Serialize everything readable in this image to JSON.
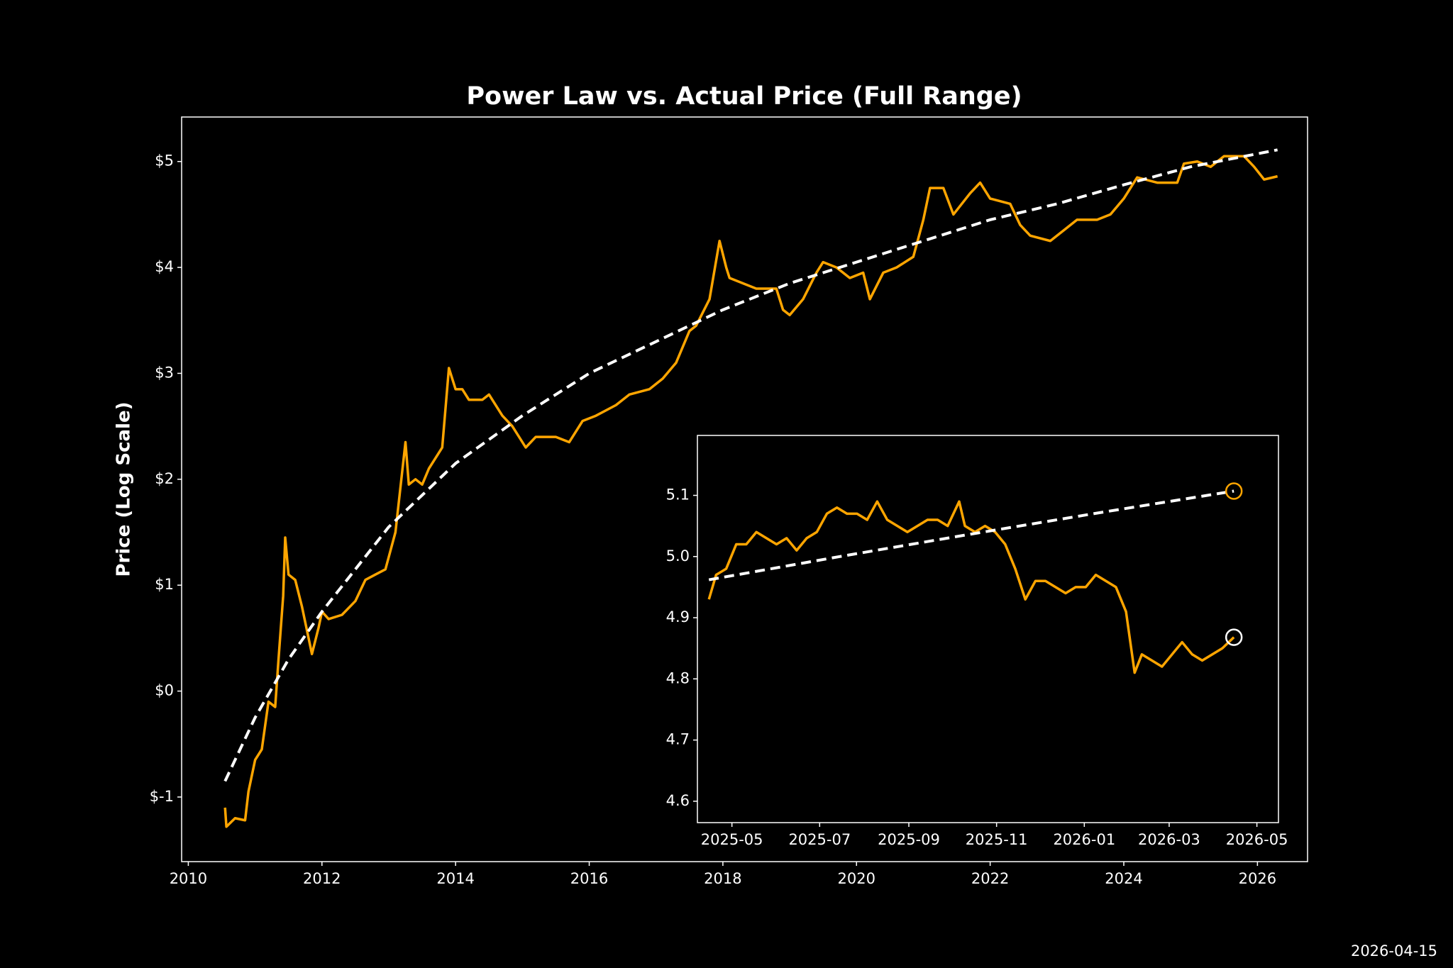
{
  "chart_data": [
    {
      "type": "line",
      "title": "Power Law vs. Actual Price (Full Range)",
      "ylabel": "Price (Log Scale)",
      "xlim": [
        2009.9,
        2026.75
      ],
      "xticks": [
        2010,
        2012,
        2014,
        2016,
        2018,
        2020,
        2022,
        2024,
        2026
      ],
      "ylim": [
        -1.61,
        5.42
      ],
      "yticks": [
        {
          "value": -1,
          "label": "$-1"
        },
        {
          "value": 0,
          "label": "$0"
        },
        {
          "value": 1,
          "label": "$1"
        },
        {
          "value": 2,
          "label": "$2"
        },
        {
          "value": 3,
          "label": "$3"
        },
        {
          "value": 4,
          "label": "$4"
        },
        {
          "value": 5,
          "label": "$5"
        }
      ],
      "series": [
        {
          "color": "#ffa500",
          "linestyle": "solid",
          "x": [
            2010.55,
            2010.57,
            2010.7,
            2010.85,
            2010.9,
            2011.0,
            2011.1,
            2011.2,
            2011.3,
            2011.35,
            2011.42,
            2011.45,
            2011.5,
            2011.6,
            2011.7,
            2011.8,
            2011.85,
            2011.95,
            2012.0,
            2012.1,
            2012.3,
            2012.5,
            2012.65,
            2012.8,
            2012.95,
            2013.1,
            2013.25,
            2013.3,
            2013.4,
            2013.5,
            2013.6,
            2013.8,
            2013.9,
            2014.0,
            2014.1,
            2014.2,
            2014.4,
            2014.5,
            2014.7,
            2014.85,
            2015.05,
            2015.2,
            2015.5,
            2015.7,
            2015.9,
            2016.1,
            2016.4,
            2016.6,
            2016.9,
            2017.1,
            2017.3,
            2017.5,
            2017.6,
            2017.8,
            2017.95,
            2018.05,
            2018.1,
            2018.3,
            2018.5,
            2018.8,
            2018.9,
            2019.0,
            2019.2,
            2019.4,
            2019.5,
            2019.7,
            2019.9,
            2020.1,
            2020.2,
            2020.4,
            2020.6,
            2020.85,
            2021.0,
            2021.1,
            2021.3,
            2021.45,
            2021.7,
            2021.85,
            2022.0,
            2022.3,
            2022.45,
            2022.6,
            2022.9,
            2023.1,
            2023.3,
            2023.6,
            2023.8,
            2024.0,
            2024.2,
            2024.5,
            2024.8,
            2024.9,
            2025.1,
            2025.3,
            2025.5,
            2025.8,
            2025.95,
            2026.1,
            2026.3
          ],
          "values": [
            -1.1,
            -1.28,
            -1.2,
            -1.22,
            -0.95,
            -0.65,
            -0.55,
            -0.1,
            -0.15,
            0.3,
            0.9,
            1.45,
            1.1,
            1.05,
            0.8,
            0.5,
            0.35,
            0.6,
            0.75,
            0.68,
            0.72,
            0.85,
            1.05,
            1.1,
            1.15,
            1.5,
            2.35,
            1.95,
            2.0,
            1.95,
            2.1,
            2.3,
            3.05,
            2.85,
            2.85,
            2.75,
            2.75,
            2.8,
            2.6,
            2.5,
            2.3,
            2.4,
            2.4,
            2.35,
            2.55,
            2.6,
            2.7,
            2.8,
            2.85,
            2.95,
            3.1,
            3.4,
            3.45,
            3.7,
            4.25,
            4.0,
            3.9,
            3.85,
            3.8,
            3.8,
            3.6,
            3.55,
            3.7,
            3.95,
            4.05,
            4.0,
            3.9,
            3.95,
            3.7,
            3.95,
            4.0,
            4.1,
            4.45,
            4.75,
            4.75,
            4.5,
            4.7,
            4.8,
            4.65,
            4.6,
            4.4,
            4.3,
            4.25,
            4.35,
            4.45,
            4.45,
            4.5,
            4.65,
            4.85,
            4.8,
            4.8,
            4.98,
            5.0,
            4.95,
            5.05,
            5.05,
            4.95,
            4.83,
            4.86
          ]
        },
        {
          "color": "#ffffff",
          "linestyle": "dashed",
          "x": [
            2010.55,
            2011,
            2011.5,
            2012,
            2013,
            2014,
            2015,
            2016,
            2017,
            2018,
            2019,
            2020,
            2021,
            2022,
            2023,
            2024,
            2025,
            2026.3
          ],
          "values": [
            -0.85,
            -0.25,
            0.3,
            0.75,
            1.55,
            2.15,
            2.6,
            3.0,
            3.3,
            3.6,
            3.85,
            4.05,
            4.25,
            4.45,
            4.6,
            4.78,
            4.95,
            5.11
          ]
        }
      ]
    },
    {
      "type": "line",
      "xscale": "date",
      "xlim": [
        "2025-04-07",
        "2026-05-16"
      ],
      "xticks": [
        "2025-05",
        "2025-07",
        "2025-09",
        "2025-11",
        "2026-01",
        "2026-03",
        "2026-05"
      ],
      "ylim": [
        4.565,
        5.198
      ],
      "yticks": [
        4.6,
        4.7,
        4.8,
        4.9,
        {
          "value": 5,
          "label": "5.0"
        },
        5.1
      ],
      "series": [
        {
          "color": "#ffa500",
          "linestyle": "solid",
          "end_marker_color": "#ffffff",
          "x": [
            "2025-04-15",
            "2025-04-20",
            "2025-04-27",
            "2025-05-04",
            "2025-05-11",
            "2025-05-18",
            "2025-05-25",
            "2025-06-01",
            "2025-06-08",
            "2025-06-15",
            "2025-06-22",
            "2025-06-29",
            "2025-07-06",
            "2025-07-13",
            "2025-07-20",
            "2025-07-27",
            "2025-08-03",
            "2025-08-10",
            "2025-08-17",
            "2025-08-24",
            "2025-08-31",
            "2025-09-07",
            "2025-09-14",
            "2025-09-21",
            "2025-09-28",
            "2025-10-06",
            "2025-10-10",
            "2025-10-17",
            "2025-10-24",
            "2025-10-31",
            "2025-11-07",
            "2025-11-14",
            "2025-11-21",
            "2025-11-28",
            "2025-12-05",
            "2025-12-12",
            "2025-12-19",
            "2025-12-26",
            "2026-01-02",
            "2026-01-09",
            "2026-01-16",
            "2026-01-23",
            "2026-01-30",
            "2026-02-05",
            "2026-02-10",
            "2026-02-17",
            "2026-02-24",
            "2026-03-03",
            "2026-03-10",
            "2026-03-17",
            "2026-03-24",
            "2026-03-31",
            "2026-04-07",
            "2026-04-15"
          ],
          "values": [
            4.93,
            4.97,
            4.98,
            5.02,
            5.02,
            5.04,
            5.03,
            5.02,
            5.03,
            5.01,
            5.03,
            5.04,
            5.07,
            5.08,
            5.07,
            5.07,
            5.06,
            5.09,
            5.06,
            5.05,
            5.04,
            5.05,
            5.06,
            5.06,
            5.05,
            5.09,
            5.05,
            5.04,
            5.05,
            5.04,
            5.02,
            4.98,
            4.93,
            4.96,
            4.96,
            4.95,
            4.94,
            4.95,
            4.95,
            4.97,
            4.96,
            4.95,
            4.91,
            4.81,
            4.84,
            4.83,
            4.82,
            4.84,
            4.86,
            4.84,
            4.83,
            4.84,
            4.85,
            4.868
          ]
        },
        {
          "color": "#ffffff",
          "linestyle": "dashed",
          "end_marker_color": "#ffa500",
          "x": [
            "2025-04-15",
            "2025-07-15",
            "2025-10-15",
            "2026-01-15",
            "2026-04-15"
          ],
          "values": [
            4.962,
            5.0,
            5.037,
            5.073,
            5.107
          ]
        }
      ]
    }
  ],
  "footer": "2026-04-15"
}
